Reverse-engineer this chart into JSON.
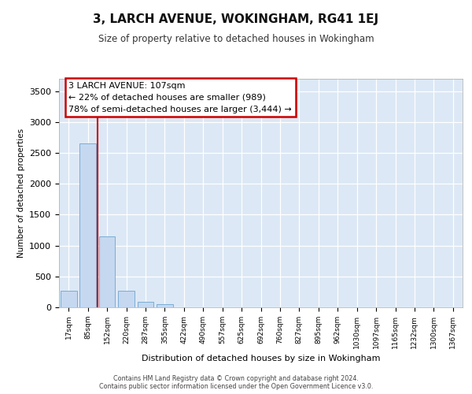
{
  "title": "3, LARCH AVENUE, WOKINGHAM, RG41 1EJ",
  "subtitle": "Size of property relative to detached houses in Wokingham",
  "xlabel": "Distribution of detached houses by size in Wokingham",
  "ylabel": "Number of detached properties",
  "bar_labels": [
    "17sqm",
    "85sqm",
    "152sqm",
    "220sqm",
    "287sqm",
    "355sqm",
    "422sqm",
    "490sqm",
    "557sqm",
    "625sqm",
    "692sqm",
    "760sqm",
    "827sqm",
    "895sqm",
    "962sqm",
    "1030sqm",
    "1097sqm",
    "1165sqm",
    "1232sqm",
    "1300sqm",
    "1367sqm"
  ],
  "bar_values": [
    270,
    2650,
    1150,
    270,
    90,
    55,
    0,
    0,
    0,
    0,
    0,
    0,
    0,
    0,
    0,
    0,
    0,
    0,
    0,
    0,
    0
  ],
  "bar_color": "#c5d8f0",
  "bar_edge_color": "#7badd4",
  "background_color": "#dce8f5",
  "annotation_text": "3 LARCH AVENUE: 107sqm\n← 22% of detached houses are smaller (989)\n78% of semi-detached houses are larger (3,444) →",
  "annotation_box_color": "#ffffff",
  "annotation_box_edge": "#cc0000",
  "vline_color": "#cc0000",
  "vline_x": 1.5,
  "ylim": [
    0,
    3700
  ],
  "yticks": [
    0,
    500,
    1000,
    1500,
    2000,
    2500,
    3000,
    3500
  ],
  "footer_line1": "Contains HM Land Registry data © Crown copyright and database right 2024.",
  "footer_line2": "Contains public sector information licensed under the Open Government Licence v3.0."
}
